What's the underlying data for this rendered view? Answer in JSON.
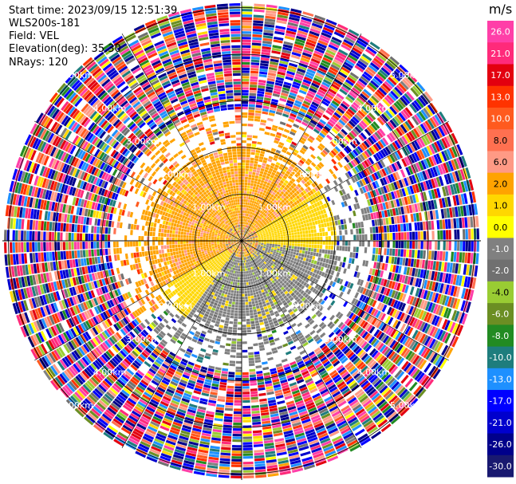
{
  "header": {
    "start_time": "Start time: 2023/09/15 12:51:39",
    "instrument": "WLS200s-181",
    "field": "Field: VEL",
    "elevation": "Elevation(deg): 35.30",
    "nrays": "NRays: 120"
  },
  "colorbar": {
    "unit": "m/s",
    "ticks": [
      "26.0",
      "21.0",
      "17.0",
      "13.0",
      "10.0",
      "8.0",
      "6.0",
      "2.0",
      "1.0",
      "0.0",
      "-1.0",
      "-2.0",
      "-4.0",
      "-6.0",
      "-8.0",
      "-10.0",
      "-13.0",
      "-17.0",
      "-21.0",
      "-26.0",
      "-30.0"
    ],
    "colors": [
      "#ff3fa8",
      "#ff2a7a",
      "#e3000f",
      "#ff3300",
      "#ff5a1e",
      "#ff7050",
      "#ff9a85",
      "#ffa300",
      "#ffd700",
      "#ffff00",
      "#808080",
      "#707070",
      "#99cc33",
      "#6b8e23",
      "#228b22",
      "#1e7d7d",
      "#1e90ff",
      "#0000ff",
      "#0000cd",
      "#00008b",
      "#191970"
    ]
  },
  "chart_data": {
    "type": "heatmap",
    "projection": "polar-ppi",
    "field": "VEL",
    "unit": "m/s",
    "nrays": 120,
    "elevation_deg": 35.3,
    "range_rings_km": [
      1.0,
      2.0,
      3.0,
      4.0,
      5.0
    ],
    "range_labels": [
      "1.00km",
      "2.00km",
      "3.00km",
      "4.00km",
      "5.00km"
    ],
    "radial_bands": [
      {
        "range_km": [
          0.0,
          0.35
        ],
        "dominant": "mixed near-zero",
        "values": [
          -2.0,
          1.0,
          6.0
        ]
      },
      {
        "range_km": [
          0.35,
          2.0
        ],
        "dominant_north_west": 1.0,
        "dominant_south_east": -2.0,
        "grey_zero_band": 0.0
      },
      {
        "range_km": [
          2.0,
          2.8
        ],
        "note": "sparse returns with noisy values"
      },
      {
        "range_km": [
          2.8,
          5.5
        ],
        "dominant": "noise spanning full scale",
        "values": [
          -30.0,
          26.0
        ]
      }
    ],
    "clim": [
      -30.0,
      26.0
    ]
  }
}
